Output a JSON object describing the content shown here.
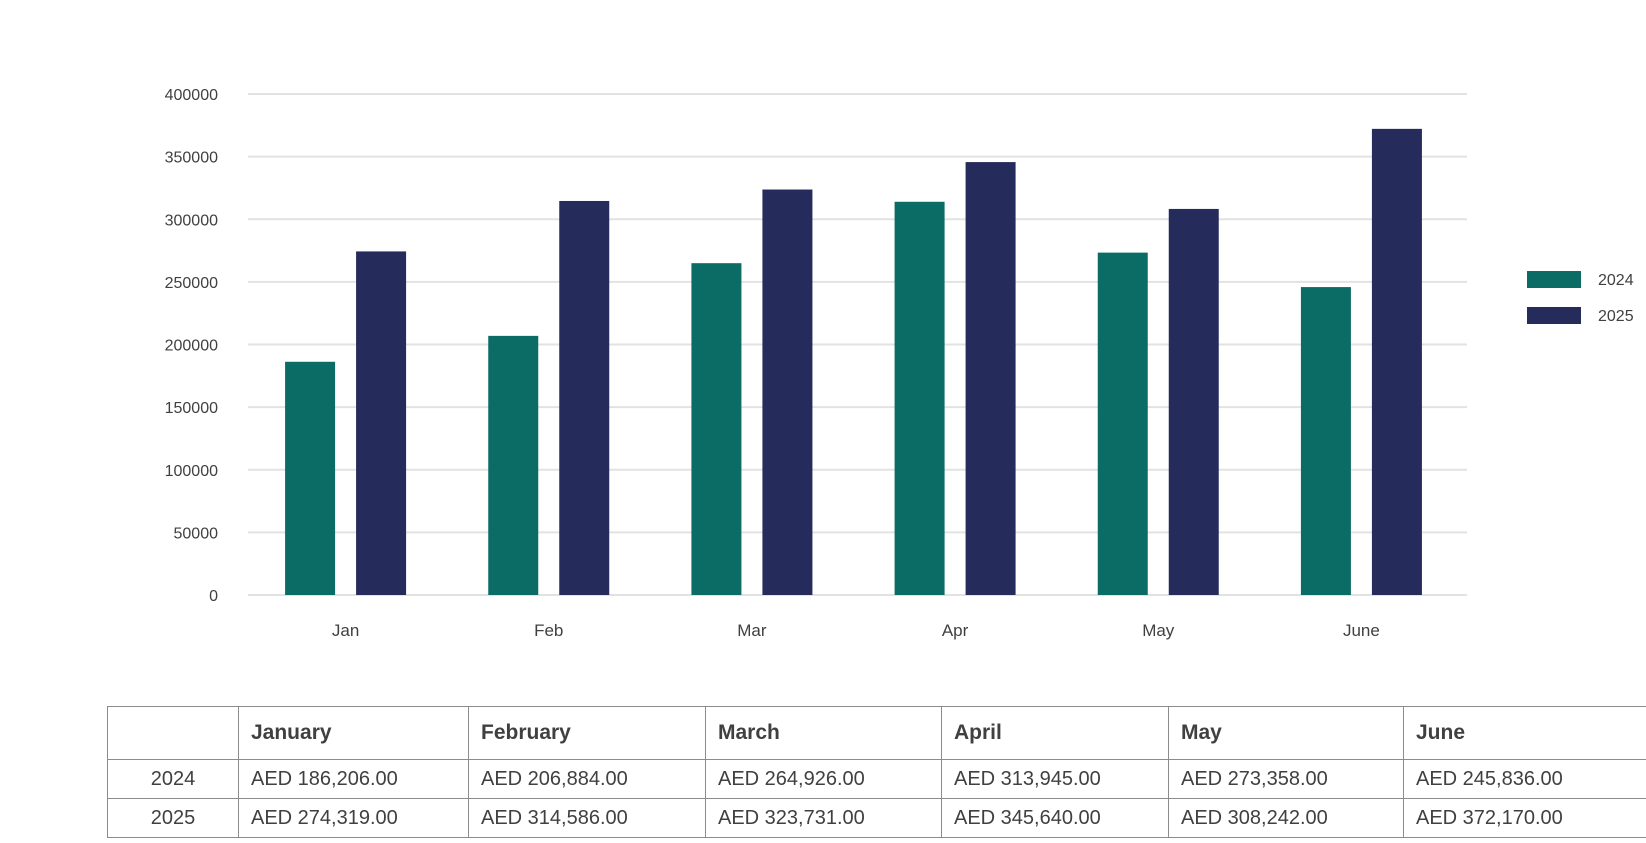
{
  "chart_data": {
    "type": "bar",
    "title": "",
    "xlabel": "",
    "ylabel": "",
    "categories": [
      "Jan",
      "Feb",
      "Mar",
      "Apr",
      "May",
      "June"
    ],
    "series": [
      {
        "name": "2024",
        "color": "#0b6b65",
        "values": [
          186206,
          206884,
          264926,
          313945,
          273358,
          245836
        ]
      },
      {
        "name": "2025",
        "color": "#252b5b",
        "values": [
          274319,
          314586,
          323731,
          345640,
          308242,
          372170
        ]
      }
    ],
    "ylim": [
      0,
      400000
    ],
    "yticks": [
      "0",
      "50000",
      "100000",
      "150000",
      "200000",
      "250000",
      "300000",
      "350000",
      "400000"
    ],
    "grid": true,
    "legend": "right"
  },
  "table": {
    "corner": "",
    "columns": [
      "January",
      "February",
      "March",
      "April",
      "May",
      "June"
    ],
    "rows": [
      {
        "label": "2024",
        "cells": [
          "AED 186,206.00",
          "AED 206,884.00",
          "AED 264,926.00",
          "AED 313,945.00",
          "AED 273,358.00",
          "AED 245,836.00"
        ]
      },
      {
        "label": "2025",
        "cells": [
          "AED 274,319.00",
          "AED 314,586.00",
          "AED 323,731.00",
          "AED 345,640.00",
          "AED 308,242.00",
          "AED 372,170.00"
        ]
      }
    ]
  }
}
